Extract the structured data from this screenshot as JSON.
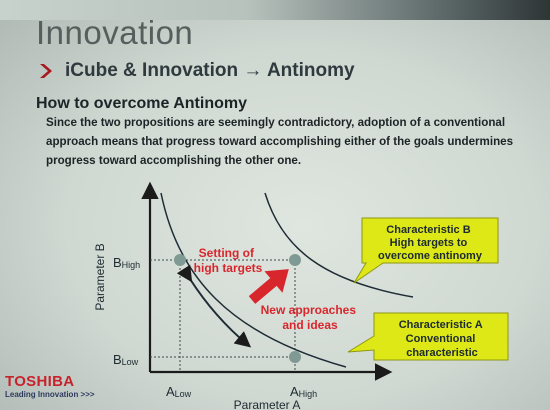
{
  "slide": {
    "title": "Innovation",
    "subtitle": "iCube & Innovation → Antinomy",
    "heading": "How to overcome Antinomy",
    "body": "Since the two propositions are seemingly contradictory, adoption of a conventional approach means that progress toward accomplishing either of the goals undermines progress toward accomplishing the other one."
  },
  "diagram": {
    "y_axis_label": "Parameter B",
    "x_axis_label": "Parameter A",
    "y_ticks": [
      {
        "main": "B",
        "sub": "High"
      },
      {
        "main": "B",
        "sub": "Low"
      }
    ],
    "x_ticks": [
      {
        "main": "A",
        "sub": "Low"
      },
      {
        "main": "A",
        "sub": "High"
      }
    ],
    "label_high_targets": [
      "Setting of",
      "high targets"
    ],
    "label_new_approaches": [
      "New approaches",
      "and ideas"
    ],
    "callout_b": [
      "Characteristic B",
      "High targets to",
      "overcome antinomy"
    ],
    "callout_a": [
      "Characteristic A",
      "Conventional",
      "characteristic"
    ]
  },
  "branding": {
    "company": "TOSHIBA",
    "tagline": "Leading Innovation >>>"
  },
  "colors": {
    "callout_fill": "#dde816",
    "highlight_red": "#d8262d",
    "point": "#7f9a94"
  }
}
